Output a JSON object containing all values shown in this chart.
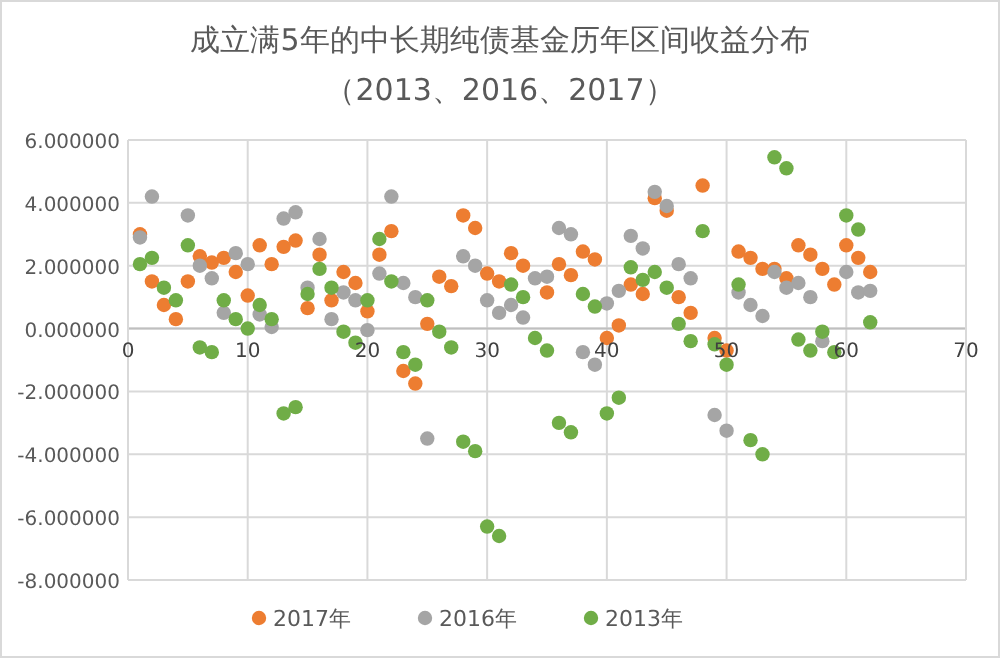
{
  "chart_data": {
    "type": "scatter",
    "title": "成立满5年的中长期纯债基金历年区间收益分布",
    "subtitle": "（2013、2016、2017）",
    "x": [
      1,
      2,
      3,
      4,
      5,
      6,
      7,
      8,
      9,
      10,
      11,
      12,
      13,
      14,
      15,
      16,
      17,
      18,
      19,
      20,
      21,
      22,
      23,
      24,
      25,
      26,
      27,
      28,
      29,
      30,
      31,
      32,
      33,
      34,
      35,
      36,
      37,
      38,
      39,
      40,
      41,
      42,
      43,
      44,
      45,
      46,
      47,
      48,
      49,
      50,
      51,
      52,
      53,
      54,
      55,
      56,
      57,
      58,
      59,
      60,
      61,
      62
    ],
    "series": [
      {
        "name": "2017年",
        "color": "#ed7d31",
        "values": [
          3.0,
          1.5,
          0.75,
          0.3,
          1.5,
          2.3,
          2.1,
          2.25,
          1.8,
          1.05,
          2.65,
          2.05,
          2.6,
          2.8,
          0.65,
          2.35,
          0.9,
          1.8,
          1.45,
          0.55,
          2.35,
          3.1,
          -1.35,
          -1.75,
          0.15,
          1.65,
          1.35,
          3.6,
          3.2,
          1.75,
          1.5,
          2.4,
          2.0,
          null,
          1.15,
          2.05,
          1.7,
          2.45,
          2.2,
          -0.3,
          0.1,
          1.4,
          1.1,
          4.15,
          3.75,
          1.0,
          0.5,
          4.55,
          -0.3,
          -0.7,
          2.45,
          2.25,
          1.9,
          1.9,
          1.6,
          2.65,
          2.35,
          1.9,
          1.4,
          2.65,
          2.25,
          1.8
        ]
      },
      {
        "name": "2016年",
        "color": "#a5a5a5",
        "values": [
          2.9,
          4.2,
          null,
          null,
          3.6,
          2.0,
          1.6,
          0.5,
          2.4,
          2.05,
          0.45,
          0.05,
          3.5,
          3.7,
          1.3,
          2.85,
          0.3,
          1.15,
          0.9,
          -0.05,
          1.75,
          4.2,
          1.45,
          1.0,
          -3.5,
          null,
          null,
          2.3,
          2.0,
          0.9,
          0.5,
          0.75,
          0.35,
          1.6,
          1.65,
          3.2,
          3.0,
          -0.75,
          -1.15,
          0.8,
          1.2,
          2.95,
          2.55,
          4.35,
          3.9,
          2.05,
          1.6,
          null,
          -2.75,
          -3.25,
          1.15,
          0.75,
          0.4,
          1.8,
          1.3,
          1.45,
          1.0,
          -0.4,
          null,
          1.8,
          1.15,
          1.2
        ]
      },
      {
        "name": "2013年",
        "color": "#70ad47",
        "values": [
          2.05,
          2.25,
          1.3,
          0.9,
          2.65,
          -0.6,
          -0.75,
          0.9,
          0.3,
          0.0,
          0.75,
          0.3,
          -2.7,
          -2.5,
          1.1,
          1.9,
          1.3,
          -0.1,
          -0.45,
          0.9,
          2.85,
          1.5,
          -0.75,
          -1.15,
          0.9,
          -0.1,
          -0.6,
          -3.6,
          -3.9,
          -6.3,
          -6.6,
          1.4,
          1.0,
          -0.3,
          -0.7,
          -3.0,
          -3.3,
          1.1,
          0.7,
          -2.7,
          -2.2,
          1.95,
          1.55,
          1.8,
          1.3,
          0.15,
          -0.4,
          3.1,
          -0.5,
          -1.15,
          1.4,
          -3.55,
          -4.0,
          5.45,
          5.1,
          -0.35,
          -0.7,
          -0.1,
          -0.75,
          3.6,
          3.15,
          0.2
        ]
      }
    ],
    "xlim": [
      0,
      70
    ],
    "xticks": [
      0,
      10,
      20,
      30,
      40,
      50,
      60,
      70
    ],
    "ylim": [
      -8,
      6
    ],
    "yticks": [
      {
        "value": 6,
        "label": "6.000000"
      },
      {
        "value": 4,
        "label": "4.000000"
      },
      {
        "value": 2,
        "label": "2.000000"
      },
      {
        "value": 0,
        "label": "0.000000"
      },
      {
        "value": -2,
        "label": "-2.000000"
      },
      {
        "value": -4,
        "label": "-4.000000"
      },
      {
        "value": -6,
        "label": "-6.000000"
      },
      {
        "value": -8,
        "label": "-8.000000"
      }
    ],
    "grid": true,
    "legend": "bottom",
    "marker": "circle"
  }
}
